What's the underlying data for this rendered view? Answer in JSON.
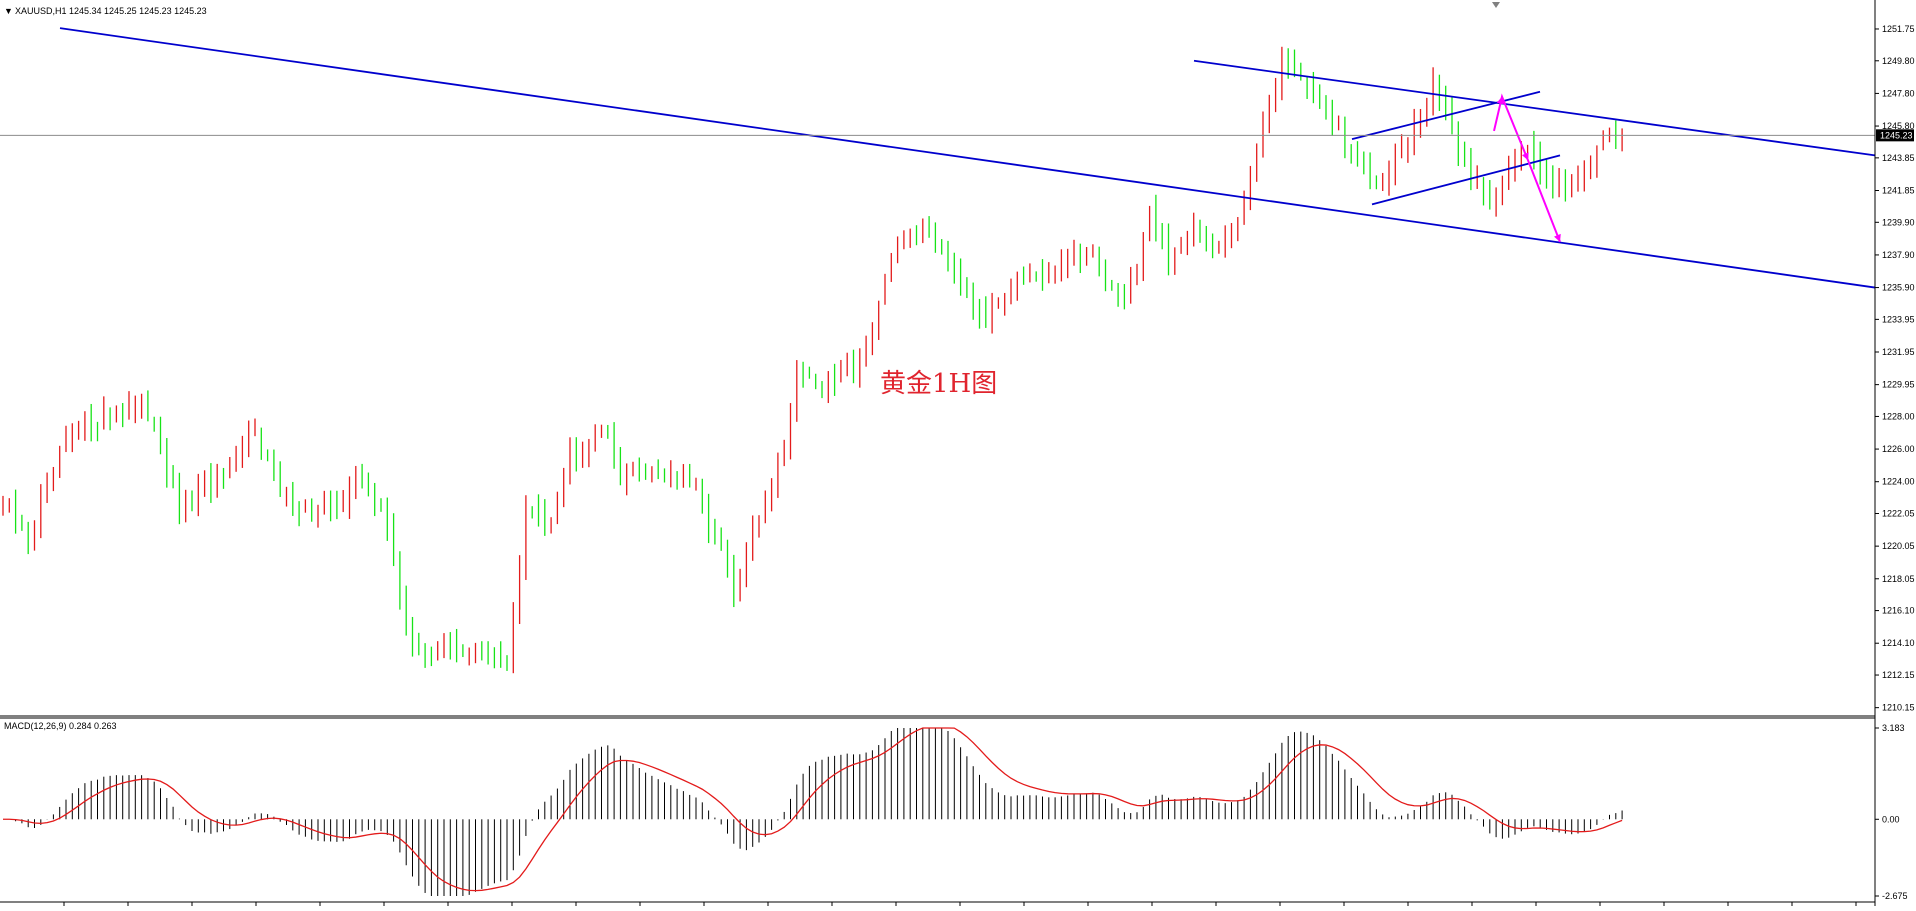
{
  "colors": {
    "background": "#ffffff",
    "bull": "#e31b1b",
    "bear": "#17e317",
    "trendline": "#0000cd",
    "arrow": "#ff00ff",
    "macd_hist": "#000000",
    "macd_signal": "#e31b1b",
    "annotation": "#e0242e",
    "price_line": "#8c8c8c"
  },
  "chart_data": [
    {
      "type": "candlestick",
      "symbol_header": "XAUUSD,H1  1245.34 1245.25 1245.23 1245.23",
      "annotation": "黄金1H图",
      "current_price": "1245.23",
      "y_ticks": [
        "1251.75",
        "1249.80",
        "1247.80",
        "1245.80",
        "1243.85",
        "1241.85",
        "1239.90",
        "1237.90",
        "1235.90",
        "1233.95",
        "1231.95",
        "1229.95",
        "1228.00",
        "1226.00",
        "1224.00",
        "1222.05",
        "1220.05",
        "1218.05",
        "1216.10",
        "1214.10",
        "1212.15",
        "1210.15"
      ],
      "ylim": [
        1209.7,
        1252.3
      ],
      "bar_count": 230,
      "keypoints": [
        [
          0,
          1222.5
        ],
        [
          4,
          1220.6
        ],
        [
          10,
          1226.5
        ],
        [
          14,
          1227.8
        ],
        [
          20,
          1228.6
        ],
        [
          24,
          1227.9
        ],
        [
          26,
          1224.5
        ],
        [
          28,
          1221.8
        ],
        [
          32,
          1223.8
        ],
        [
          36,
          1224.5
        ],
        [
          40,
          1227.4
        ],
        [
          44,
          1223.2
        ],
        [
          48,
          1222.5
        ],
        [
          52,
          1222.0
        ],
        [
          56,
          1224.0
        ],
        [
          60,
          1223.0
        ],
        [
          64,
          1215.0
        ],
        [
          66,
          1213.2
        ],
        [
          70,
          1214.0
        ],
        [
          75,
          1213.5
        ],
        [
          80,
          1213.0
        ],
        [
          83,
          1222.0
        ],
        [
          87,
          1222.0
        ],
        [
          90,
          1225.6
        ],
        [
          95,
          1227.5
        ],
        [
          98,
          1224.5
        ],
        [
          105,
          1224.8
        ],
        [
          110,
          1223.5
        ],
        [
          114,
          1219.8
        ],
        [
          116,
          1217.0
        ],
        [
          120,
          1221.8
        ],
        [
          124,
          1226.2
        ],
        [
          126,
          1231.0
        ],
        [
          130,
          1229.8
        ],
        [
          134,
          1230.8
        ],
        [
          137,
          1232.2
        ],
        [
          140,
          1236.5
        ],
        [
          143,
          1238.8
        ],
        [
          146,
          1239.5
        ],
        [
          150,
          1238.0
        ],
        [
          154,
          1235.0
        ],
        [
          157,
          1234.2
        ],
        [
          161,
          1237.0
        ],
        [
          165,
          1235.8
        ],
        [
          170,
          1238.0
        ],
        [
          174,
          1237.5
        ],
        [
          177,
          1235.0
        ],
        [
          180,
          1237.0
        ],
        [
          182,
          1241.0
        ],
        [
          185,
          1237.8
        ],
        [
          189,
          1239.0
        ],
        [
          193,
          1238.5
        ],
        [
          197,
          1240.8
        ],
        [
          200,
          1246.0
        ],
        [
          203,
          1249.8
        ],
        [
          206,
          1249.0
        ],
        [
          209,
          1247.2
        ],
        [
          212,
          1245.2
        ],
        [
          215,
          1243.5
        ],
        [
          218,
          1242.5
        ],
        [
          221,
          1244.0
        ],
        [
          224,
          1245.5
        ],
        [
          227,
          1248.5
        ],
        [
          230,
          1245.5
        ],
        [
          233,
          1242.8
        ],
        [
          236,
          1241.5
        ],
        [
          239,
          1243.0
        ],
        [
          242,
          1244.5
        ],
        [
          245,
          1242.8
        ],
        [
          248,
          1242.0
        ],
        [
          251,
          1243.5
        ],
        [
          254,
          1244.8
        ],
        [
          257,
          1245.3
        ]
      ],
      "channel_upper": [
        [
          1249.8,
          1247.8
        ],
        [
          1532,
          1244.0
        ]
      ],
      "channel_lower": [
        [
          1222.5,
          1215.0
        ],
        [
          1532,
          1235.9
        ]
      ],
      "wedge": [
        [
          1249.8,
          1245.0
        ],
        [
          1262,
          1247.9
        ],
        [
          1124,
          1241.0
        ],
        [
          1276,
          1244.0
        ]
      ],
      "projection_arrows": [
        [
          1217,
          1245.5
        ],
        [
          1227,
          1247.6
        ],
        [
          1248,
          1243.7
        ],
        [
          1275,
          1238.7
        ]
      ]
    },
    {
      "type": "bar",
      "indicator": "MACD(12,26,9)",
      "label": "MACD(12,26,9) 0.284 0.263",
      "series": [
        {
          "name": "MACD",
          "value": 0.284
        },
        {
          "name": "Signal",
          "value": 0.263
        }
      ],
      "y_ticks": [
        "3.183",
        "0.00",
        "-2.675"
      ],
      "ylim": [
        -2.675,
        3.183
      ]
    }
  ]
}
